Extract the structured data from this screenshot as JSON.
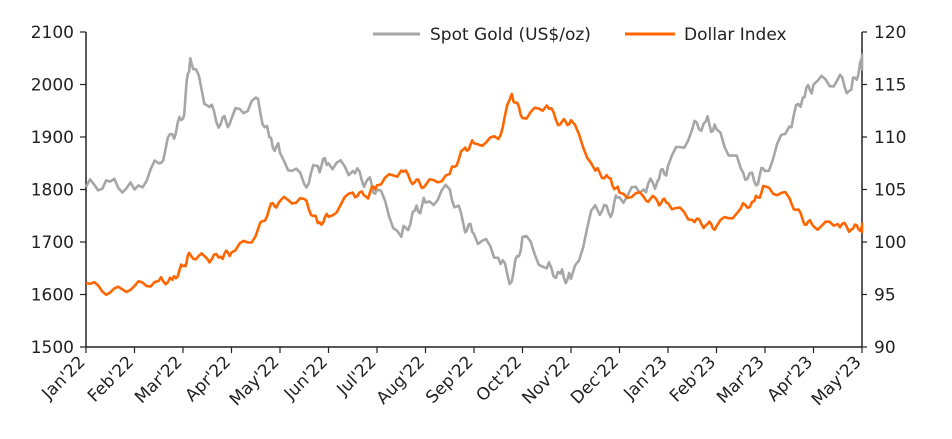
{
  "chart_data": {
    "type": "line",
    "dual_axis": true,
    "x_range": [
      "Jan'22",
      "May'23"
    ],
    "x_tick_labels": [
      "Jan'22",
      "Feb'22",
      "Mar'22",
      "Apr'22",
      "May'22",
      "Jun'22",
      "Jul'22",
      "Aug'22",
      "Sep'22",
      "Oct'22",
      "Nov'22",
      "Dec'22",
      "Jan'23",
      "Feb'23",
      "Mar'23",
      "Apr'23",
      "May'23"
    ],
    "y_left": {
      "lim": [
        1500,
        2100
      ],
      "ticks": [
        "1500",
        "1600",
        "1700",
        "1800",
        "1900",
        "2000",
        "2100"
      ]
    },
    "y_right": {
      "lim": [
        90,
        120
      ],
      "ticks": [
        "90",
        "95",
        "100",
        "105",
        "110",
        "115",
        "120"
      ]
    },
    "grid": false,
    "legend_position": "top-right",
    "series": [
      {
        "name": "Spot Gold (US$/oz)",
        "axis": "left",
        "color": "#a6a6a6",
        "points": [
          [
            "Jan'22",
            1805
          ],
          [
            "Jan'22 mid",
            1815
          ],
          [
            "Feb'22",
            1800
          ],
          [
            "Feb'22 mid",
            1850
          ],
          [
            "Feb'22 late",
            1905
          ],
          [
            "Mar'22",
            1935
          ],
          [
            "Mar'22 peak",
            2050
          ],
          [
            "Mar'22 mid",
            1960
          ],
          [
            "Mar'22 late",
            1925
          ],
          [
            "Apr'22",
            1935
          ],
          [
            "Apr'22 mid",
            1975
          ],
          [
            "Apr'22 late",
            1900
          ],
          [
            "May'22",
            1870
          ],
          [
            "May'22 mid",
            1810
          ],
          [
            "May'22 late",
            1845
          ],
          [
            "Jun'22",
            1850
          ],
          [
            "Jun'22 mid",
            1835
          ],
          [
            "Jun'22 late",
            1815
          ],
          [
            "Jul'22",
            1800
          ],
          [
            "Jul'22 mid",
            1710
          ],
          [
            "Jul'22 late",
            1760
          ],
          [
            "Aug'22",
            1775
          ],
          [
            "Aug'22 mid",
            1800
          ],
          [
            "Aug'22 late",
            1735
          ],
          [
            "Sep'22",
            1715
          ],
          [
            "Sep'22 mid",
            1670
          ],
          [
            "Sep'22 late",
            1625
          ],
          [
            "Oct'22",
            1710
          ],
          [
            "Oct'22 mid",
            1650
          ],
          [
            "Oct'22 late",
            1640
          ],
          [
            "Nov'22",
            1630
          ],
          [
            "Nov'22 mid",
            1770
          ],
          [
            "Nov'22 late",
            1755
          ],
          [
            "Dec'22",
            1785
          ],
          [
            "Dec'22 mid",
            1800
          ],
          [
            "Dec'22 late",
            1815
          ],
          [
            "Jan'23",
            1845
          ],
          [
            "Jan'23 mid",
            1915
          ],
          [
            "Jan'23 late",
            1930
          ],
          [
            "Feb'23",
            1915
          ],
          [
            "Feb'23 mid",
            1840
          ],
          [
            "Feb'23 late",
            1815
          ],
          [
            "Mar'23",
            1835
          ],
          [
            "Mar'23 mid",
            1920
          ],
          [
            "Mar'23 late",
            1975
          ],
          [
            "Apr'23",
            2000
          ],
          [
            "Apr'23 mid",
            2010
          ],
          [
            "Apr'23 late",
            1990
          ],
          [
            "May'23",
            2050
          ],
          [
            "May'23 end",
            2035
          ]
        ]
      },
      {
        "name": "Dollar Index",
        "axis": "right",
        "color": "#ff6600",
        "points": [
          [
            "Jan'22",
            96.1
          ],
          [
            "Jan'22 mid",
            95.2
          ],
          [
            "Feb'22",
            95.8
          ],
          [
            "Feb'22 mid",
            96.3
          ],
          [
            "Feb'22 late",
            96.4
          ],
          [
            "Mar'22",
            97.7
          ],
          [
            "Mar'22 peak",
            98.8
          ],
          [
            "Mar'22 mid",
            98.4
          ],
          [
            "Mar'22 late",
            98.6
          ],
          [
            "Apr'22",
            99.0
          ],
          [
            "Apr'22 mid",
            100.6
          ],
          [
            "Apr'22 late",
            103.2
          ],
          [
            "May'22",
            103.9
          ],
          [
            "May'22 mid",
            104.1
          ],
          [
            "May'22 late",
            101.8
          ],
          [
            "Jun'22",
            102.4
          ],
          [
            "Jun'22 mid",
            104.7
          ],
          [
            "Jun'22 late",
            104.3
          ],
          [
            "Jul'22",
            105.4
          ],
          [
            "Jul'22 mid",
            106.8
          ],
          [
            "Jul'22 late",
            105.7
          ],
          [
            "Aug'22",
            105.4
          ],
          [
            "Aug'22 mid",
            106.5
          ],
          [
            "Aug'22 late",
            108.8
          ],
          [
            "Sep'22",
            109.4
          ],
          [
            "Sep'22 mid",
            109.8
          ],
          [
            "Sep'22 late",
            114.1
          ],
          [
            "Oct'22",
            111.8
          ],
          [
            "Oct'22 mid",
            113.0
          ],
          [
            "Oct'22 late",
            111.2
          ],
          [
            "Nov'22",
            111.6
          ],
          [
            "Nov'22 mid",
            106.8
          ],
          [
            "Nov'22 late",
            106.1
          ],
          [
            "Dec'22",
            104.7
          ],
          [
            "Dec'22 mid",
            104.3
          ],
          [
            "Dec'22 late",
            103.9
          ],
          [
            "Jan'23",
            103.7
          ],
          [
            "Jan'23 mid",
            102.1
          ],
          [
            "Jan'23 late",
            101.6
          ],
          [
            "Feb'23",
            101.5
          ],
          [
            "Feb'23 mid",
            103.2
          ],
          [
            "Feb'23 late",
            103.9
          ],
          [
            "Mar'23",
            105.3
          ],
          [
            "Mar'23 mid",
            104.2
          ],
          [
            "Mar'23 late",
            102.1
          ],
          [
            "Apr'23",
            101.5
          ],
          [
            "Apr'23 mid",
            101.7
          ],
          [
            "Apr'23 late",
            101.2
          ],
          [
            "May'23",
            101.5
          ],
          [
            "May'23 end",
            101.2
          ]
        ]
      }
    ]
  }
}
